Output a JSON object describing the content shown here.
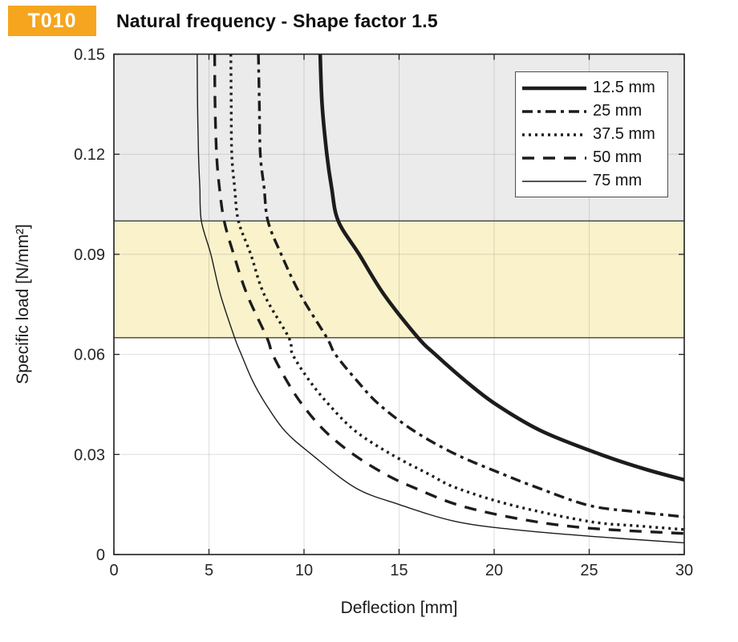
{
  "badge": {
    "label": "T010",
    "color": "#F6A51F"
  },
  "title": "Natural frequency - Shape factor 1.5",
  "chart_data": {
    "type": "line",
    "title": "Natural frequency - Shape factor 1.5",
    "xlabel": "Deflection  [mm]",
    "ylabel": "Specific load [N/mm²]",
    "xlim": [
      0,
      30
    ],
    "ylim": [
      0,
      0.15
    ],
    "xticks": [
      0,
      5,
      10,
      15,
      20,
      25,
      30
    ],
    "xtick_labels": [
      "0",
      "5",
      "10",
      "15",
      "20",
      "25",
      "30"
    ],
    "yticks": [
      0,
      0.03,
      0.06,
      0.09,
      0.12,
      0.15
    ],
    "ytick_labels": [
      "0",
      "0.03",
      "0.06",
      "0.09",
      "0.12",
      "0.15"
    ],
    "grid": true,
    "legend_position": "top-right",
    "curve_color": "#1c1c1c",
    "grid_color_alpha": 0.13,
    "bands": [
      {
        "from": 0.1,
        "to": 0.15,
        "color": "#EBEBEB",
        "border": null
      },
      {
        "from": 0.065,
        "to": 0.1,
        "color": "#FAF2CB",
        "border": "#44423A"
      }
    ],
    "series": [
      {
        "name": "12.5 mm",
        "style": "solid-thick",
        "points": [
          [
            10.85,
            0.15
          ],
          [
            10.95,
            0.135
          ],
          [
            11.2,
            0.12
          ],
          [
            11.45,
            0.11
          ],
          [
            11.8,
            0.1
          ],
          [
            12.9,
            0.09
          ],
          [
            14.2,
            0.078
          ],
          [
            16.0,
            0.065
          ],
          [
            16.9,
            0.06
          ],
          [
            18.5,
            0.052
          ],
          [
            20.1,
            0.045
          ],
          [
            22.5,
            0.037
          ],
          [
            25.6,
            0.03
          ],
          [
            28.0,
            0.0255
          ],
          [
            30.0,
            0.0224
          ]
        ]
      },
      {
        "name": "25 mm",
        "style": "dashdot",
        "points": [
          [
            7.6,
            0.15
          ],
          [
            7.65,
            0.135
          ],
          [
            7.7,
            0.12
          ],
          [
            7.9,
            0.11
          ],
          [
            8.1,
            0.1
          ],
          [
            8.8,
            0.09
          ],
          [
            9.8,
            0.078
          ],
          [
            11.2,
            0.065
          ],
          [
            11.65,
            0.06
          ],
          [
            12.8,
            0.052
          ],
          [
            13.95,
            0.045
          ],
          [
            15.8,
            0.037
          ],
          [
            18.0,
            0.03
          ],
          [
            20.5,
            0.024
          ],
          [
            22.3,
            0.02
          ],
          [
            25.0,
            0.0147
          ],
          [
            27.5,
            0.0128
          ],
          [
            30.0,
            0.0113
          ]
        ]
      },
      {
        "name": "37.5 mm",
        "style": "dotted",
        "points": [
          [
            6.15,
            0.15
          ],
          [
            6.17,
            0.135
          ],
          [
            6.2,
            0.12
          ],
          [
            6.35,
            0.11
          ],
          [
            6.55,
            0.1
          ],
          [
            7.2,
            0.09
          ],
          [
            7.9,
            0.078
          ],
          [
            9.2,
            0.065
          ],
          [
            9.4,
            0.06
          ],
          [
            10.3,
            0.052
          ],
          [
            11.3,
            0.045
          ],
          [
            12.7,
            0.037
          ],
          [
            14.6,
            0.03
          ],
          [
            16.6,
            0.024
          ],
          [
            18.0,
            0.02
          ],
          [
            21.0,
            0.0147
          ],
          [
            25.0,
            0.0099
          ],
          [
            27.5,
            0.0086
          ],
          [
            30.0,
            0.0075
          ]
        ]
      },
      {
        "name": "50 mm",
        "style": "dashed",
        "points": [
          [
            5.3,
            0.15
          ],
          [
            5.32,
            0.135
          ],
          [
            5.4,
            0.12
          ],
          [
            5.55,
            0.11
          ],
          [
            5.8,
            0.1
          ],
          [
            6.3,
            0.09
          ],
          [
            7.0,
            0.078
          ],
          [
            8.05,
            0.065
          ],
          [
            8.35,
            0.06
          ],
          [
            9.1,
            0.052
          ],
          [
            9.9,
            0.045
          ],
          [
            11.1,
            0.037
          ],
          [
            12.6,
            0.03
          ],
          [
            14.3,
            0.024
          ],
          [
            15.8,
            0.02
          ],
          [
            18.2,
            0.0147
          ],
          [
            21.5,
            0.0105
          ],
          [
            25.0,
            0.0079
          ],
          [
            30.0,
            0.0063
          ]
        ]
      },
      {
        "name": "75 mm",
        "style": "solid-thin",
        "points": [
          [
            4.38,
            0.15
          ],
          [
            4.4,
            0.135
          ],
          [
            4.45,
            0.12
          ],
          [
            4.52,
            0.11
          ],
          [
            4.6,
            0.1
          ],
          [
            5.1,
            0.09
          ],
          [
            5.6,
            0.078
          ],
          [
            6.35,
            0.065
          ],
          [
            6.7,
            0.06
          ],
          [
            7.3,
            0.052
          ],
          [
            8.0,
            0.045
          ],
          [
            9.0,
            0.037
          ],
          [
            10.4,
            0.03
          ],
          [
            12.7,
            0.02
          ],
          [
            15.0,
            0.015
          ],
          [
            17.9,
            0.01
          ],
          [
            21.0,
            0.0075
          ],
          [
            25.0,
            0.0055
          ],
          [
            30.0,
            0.0035
          ]
        ]
      }
    ]
  }
}
